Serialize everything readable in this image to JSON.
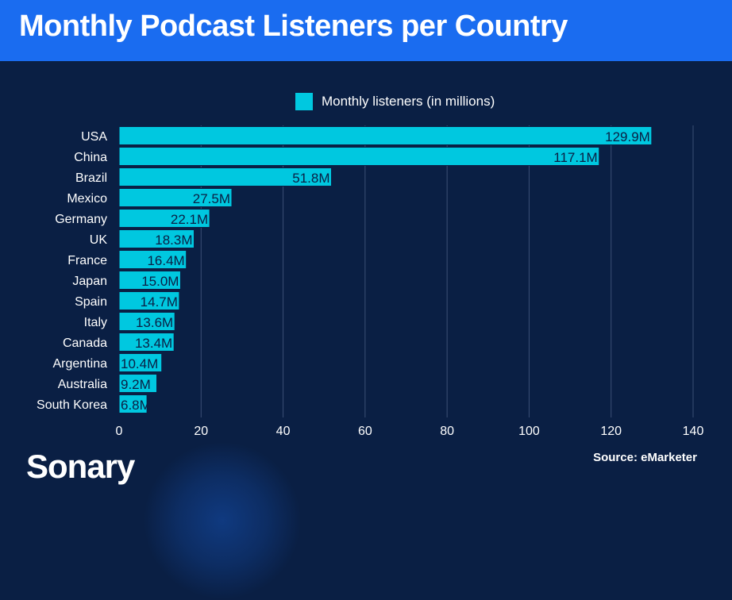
{
  "header": {
    "title": "Monthly Podcast Listeners per Country"
  },
  "brand": {
    "name": "Sonary"
  },
  "source": {
    "text": "Source: eMarketer"
  },
  "colors": {
    "bar": "#00c8e0",
    "header": "#1a6cf0",
    "background": "#0a1f44",
    "grid": "#3b4f75"
  },
  "chart_data": {
    "type": "bar",
    "orientation": "horizontal",
    "title": "Monthly Podcast Listeners per Country",
    "xlabel": "",
    "ylabel": "",
    "categories": [
      "USA",
      "China",
      "Brazil",
      "Mexico",
      "Germany",
      "UK",
      "France",
      "Japan",
      "Spain",
      "Italy",
      "Canada",
      "Argentina",
      "Australia",
      "South Korea"
    ],
    "series": [
      {
        "name": "Monthly listeners (in millions)",
        "values": [
          129.9,
          117.1,
          51.8,
          27.5,
          22.1,
          18.3,
          16.4,
          15.0,
          14.7,
          13.6,
          13.4,
          10.4,
          9.2,
          6.8
        ],
        "data_labels": [
          "129.9M",
          "117.1M",
          "51.8M",
          "27.5M",
          "22.1M",
          "18.3M",
          "16.4M",
          "15.0M",
          "14.7M",
          "13.6M",
          "13.4M",
          "10.4M",
          "9.2M",
          "6.8M"
        ]
      }
    ],
    "xlim": [
      0,
      140
    ],
    "xticks": [
      0,
      20,
      40,
      60,
      80,
      100,
      120,
      140
    ],
    "grid": true,
    "legend_position": "top-center"
  }
}
